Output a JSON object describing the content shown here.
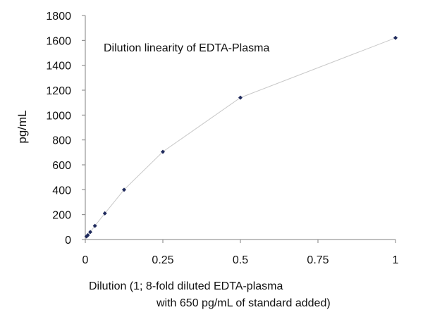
{
  "chart_data": {
    "type": "scatter",
    "title": "Dilution linearity of EDTA-Plasma",
    "xlabel_line1": "Dilution (1; 8-fold diluted EDTA-plasma",
    "xlabel_line2": "with 650 pg/mL of standard added)",
    "ylabel": "pg/mL",
    "xlim": [
      0,
      1
    ],
    "ylim": [
      0,
      1800
    ],
    "x_ticks": [
      0,
      0.25,
      0.5,
      0.75,
      1
    ],
    "x_tick_labels": [
      "0",
      "0.25",
      "0.5",
      "0.75",
      "1"
    ],
    "y_ticks": [
      0,
      200,
      400,
      600,
      800,
      1000,
      1200,
      1400,
      1600,
      1800
    ],
    "y_tick_labels": [
      "0",
      "200",
      "400",
      "600",
      "800",
      "1000",
      "1200",
      "1400",
      "1600",
      "1800"
    ],
    "grid": false,
    "connected": true,
    "series": [
      {
        "x": [
          0.004,
          0.008,
          0.016,
          0.031,
          0.063,
          0.125,
          0.25,
          0.5,
          1.0
        ],
        "y": [
          25,
          35,
          60,
          110,
          210,
          400,
          705,
          1140,
          1620
        ]
      }
    ],
    "colors": {
      "marker": "#1f2a5c",
      "line": "#c8c8c8",
      "axis": "#808080"
    }
  }
}
